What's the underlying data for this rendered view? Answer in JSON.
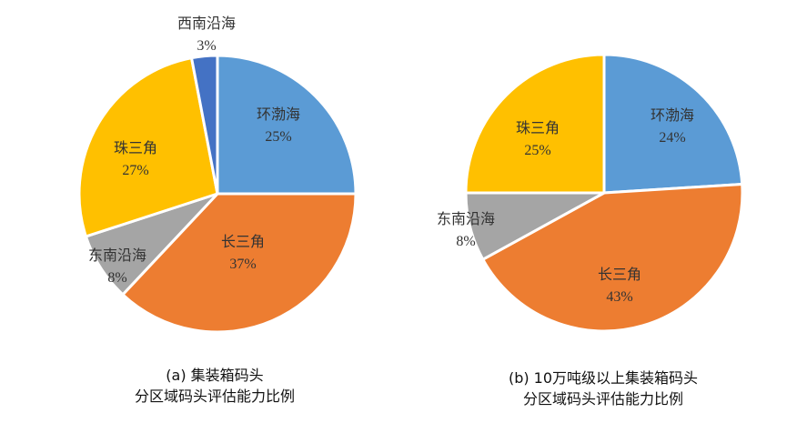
{
  "chart_data": [
    {
      "type": "pie",
      "caption_line1": "(a)  集装箱码头",
      "caption_line2": "分区域码头评估能力比例",
      "slices": [
        {
          "label": "环渤海",
          "value": 25,
          "display": "25%",
          "color": "#5B9BD5"
        },
        {
          "label": "长三角",
          "value": 37,
          "display": "37%",
          "color": "#ED7D31"
        },
        {
          "label": "东南沿海",
          "value": 8,
          "display": "8%",
          "color": "#A5A5A5"
        },
        {
          "label": "珠三角",
          "value": 27,
          "display": "27%",
          "color": "#FFC000"
        },
        {
          "label": "西南沿海",
          "value": 3,
          "display": "3%",
          "color": "#4472C4"
        }
      ]
    },
    {
      "type": "pie",
      "caption_line1": "(b) 10万吨级以上集装箱码头",
      "caption_line2": "分区域码头评估能力比例",
      "slices": [
        {
          "label": "环渤海",
          "value": 24,
          "display": "24%",
          "color": "#5B9BD5"
        },
        {
          "label": "长三角",
          "value": 43,
          "display": "43%",
          "color": "#ED7D31"
        },
        {
          "label": "东南沿海",
          "value": 8,
          "display": "8%",
          "color": "#A5A5A5"
        },
        {
          "label": "珠三角",
          "value": 25,
          "display": "25%",
          "color": "#FFC000"
        }
      ]
    }
  ]
}
